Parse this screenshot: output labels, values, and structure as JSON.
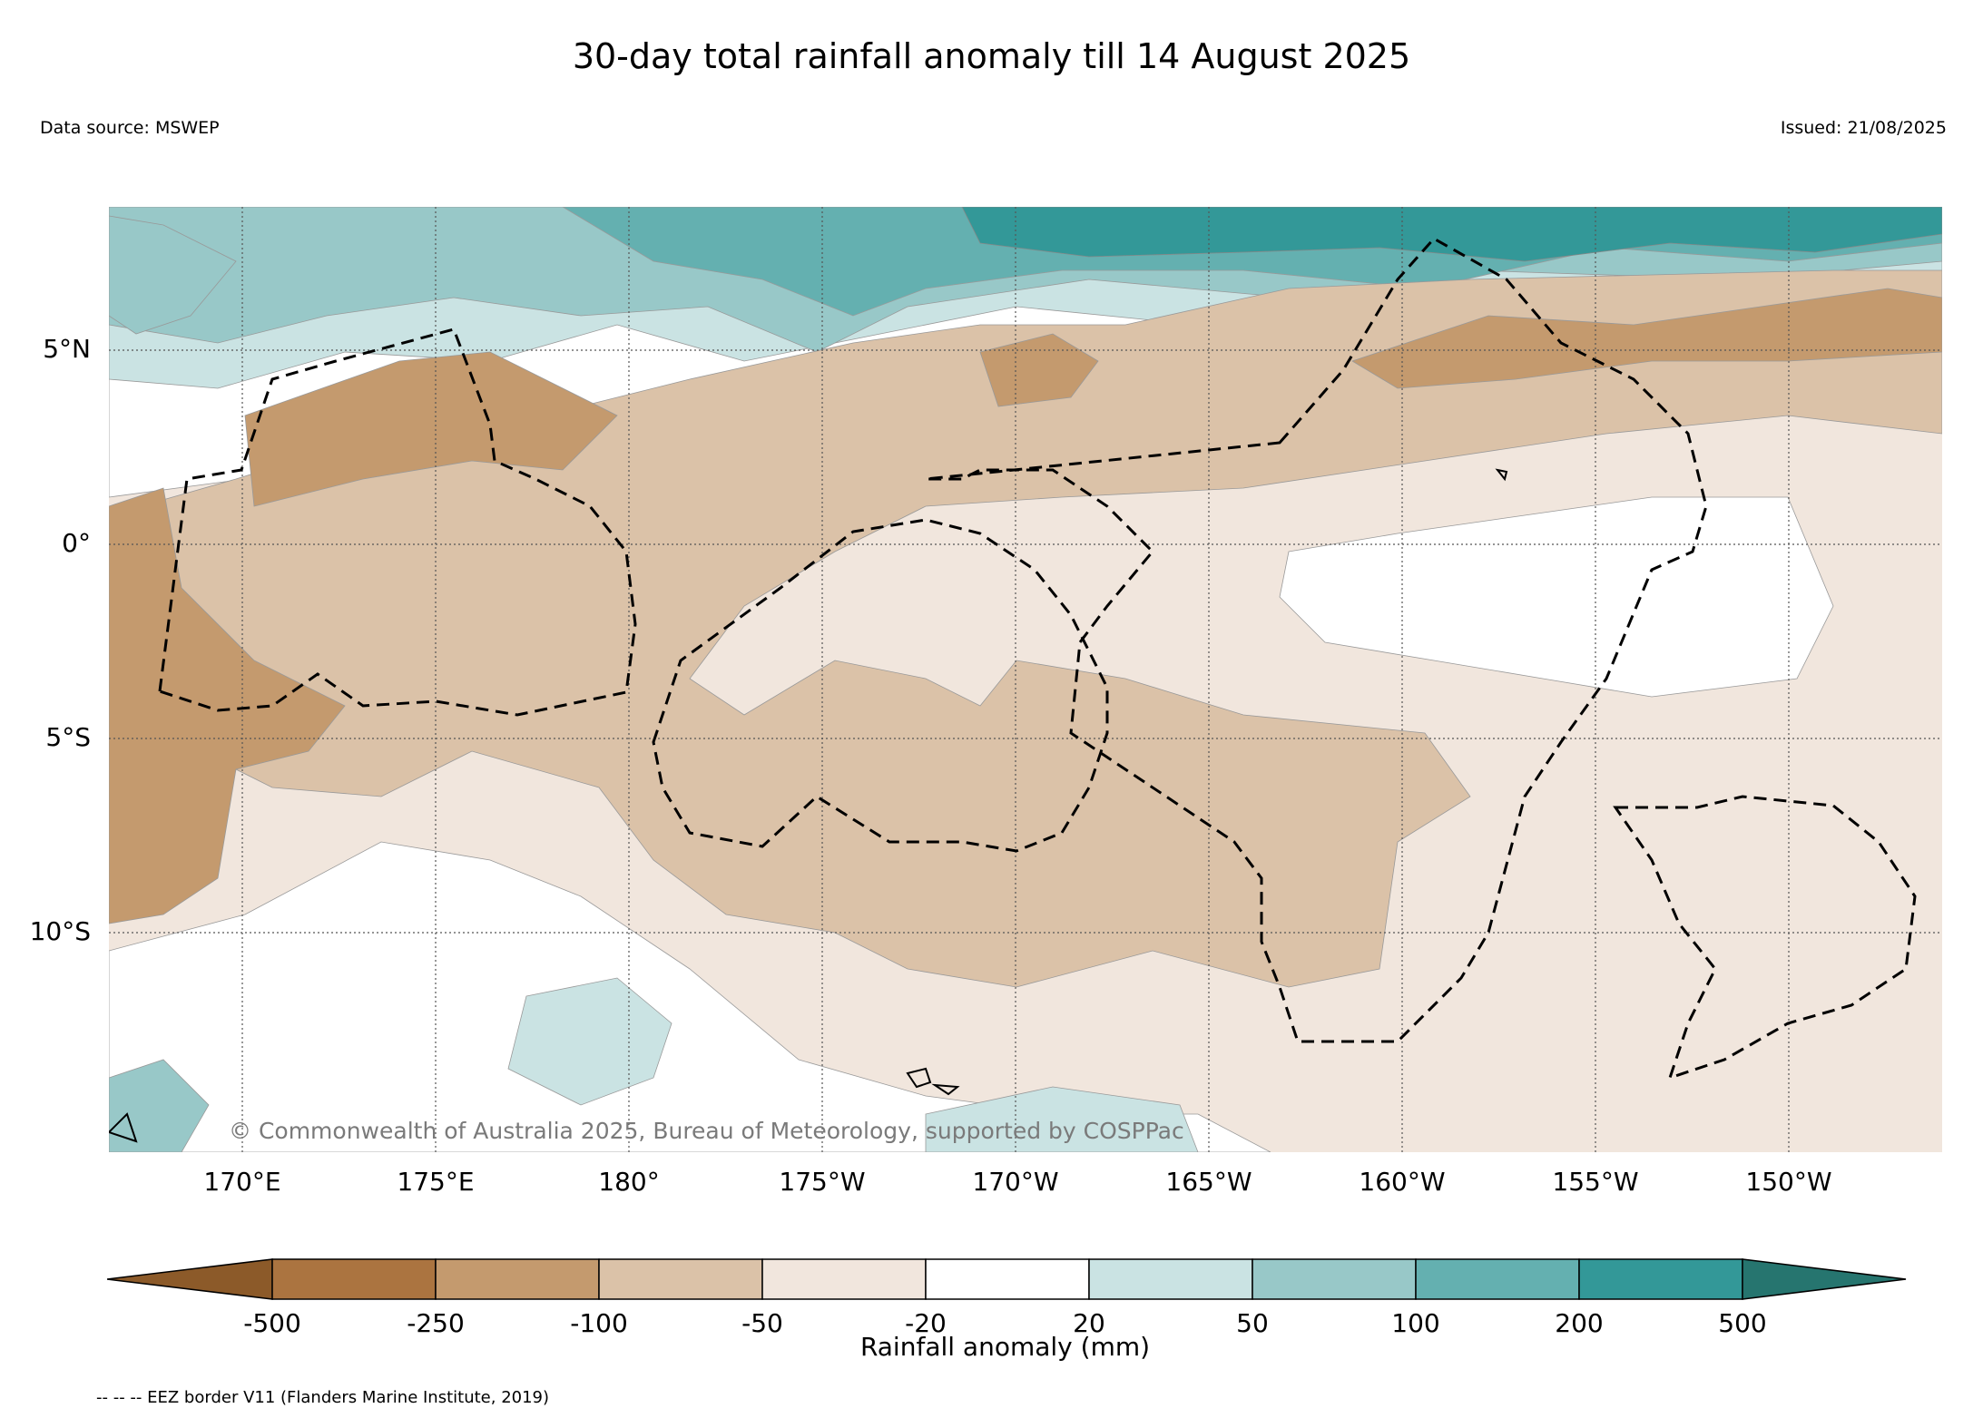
{
  "title": "30-day total rainfall anomaly till 14 August 2025",
  "data_source": "Data source: MSWEP",
  "issued": "Issued: 21/08/2025",
  "copyright": "© Commonwealth of Australia 2025, Bureau of Meteorology, supported by COSPPac",
  "map": {
    "lat_labels": [
      "5°N",
      "0°",
      "5°S",
      "10°S"
    ],
    "lon_labels": [
      "170°E",
      "175°E",
      "180°",
      "175°W",
      "170°W",
      "165°W",
      "160°W",
      "155°W",
      "150°W"
    ],
    "gridlines": "dotted"
  },
  "colorbar": {
    "title": "Rainfall anomaly (mm)",
    "ticks": [
      "-500",
      "-250",
      "-100",
      "-50",
      "-20",
      "20",
      "50",
      "100",
      "200",
      "500"
    ],
    "colors": [
      "#8c5a29",
      "#ab7440",
      "#c49a6e",
      "#dbc2a8",
      "#f1e6dd",
      "#ffffff",
      "#cae3e3",
      "#98c8c8",
      "#64b0b0",
      "#339898",
      "#26756f"
    ]
  },
  "legend_note": "-- -- -- EEZ border V11 (Flanders Marine Institute, 2019)"
}
